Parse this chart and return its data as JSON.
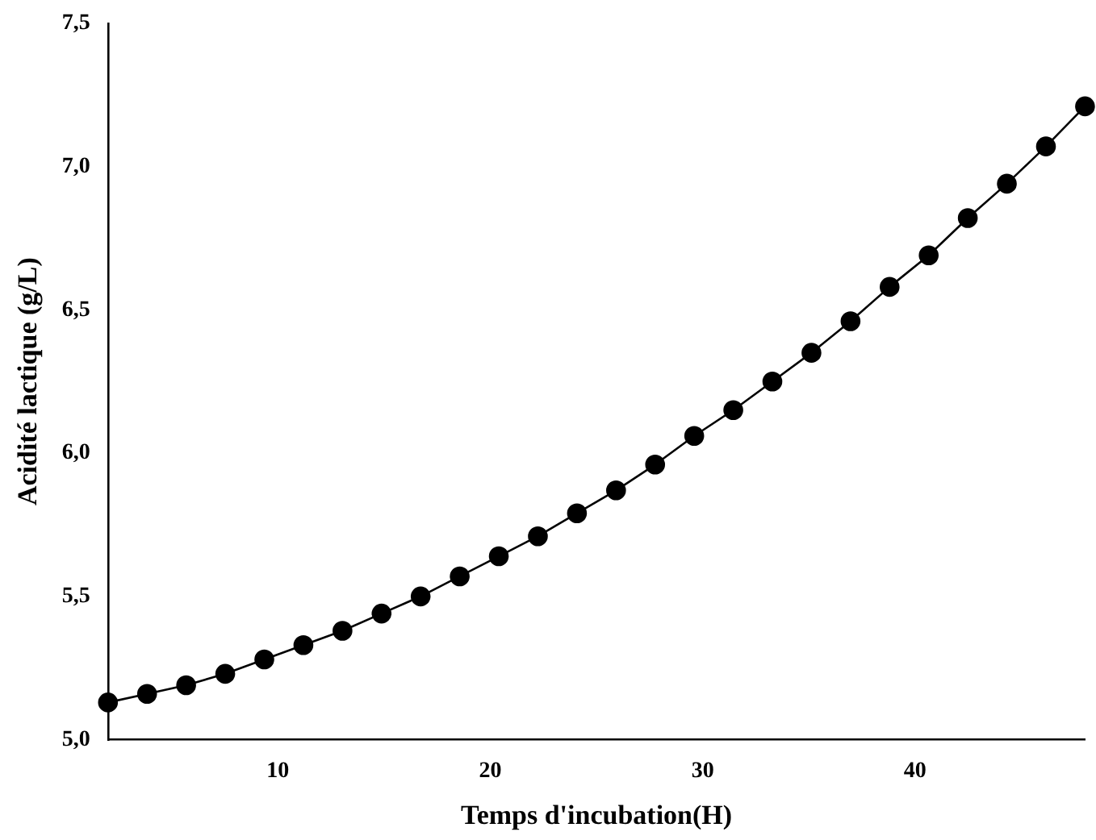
{
  "chart_data": {
    "type": "line",
    "xlabel": "Temps d'incubation(H)",
    "ylabel": "Acidité lactique (g/L)",
    "x": [
      2,
      3.84,
      5.68,
      7.52,
      9.36,
      11.2,
      13.04,
      14.88,
      16.72,
      18.56,
      20.4,
      22.24,
      24.08,
      25.92,
      27.76,
      29.6,
      31.44,
      33.28,
      35.12,
      36.96,
      38.8,
      40.64,
      42.48,
      44.32,
      46.16,
      48
    ],
    "series": [
      {
        "color": "#000000",
        "values": [
          5.13,
          5.16,
          5.19,
          5.23,
          5.28,
          5.33,
          5.38,
          5.44,
          5.5,
          5.57,
          5.64,
          5.71,
          5.79,
          5.87,
          5.96,
          6.06,
          6.15,
          6.25,
          6.35,
          6.46,
          6.58,
          6.69,
          6.82,
          6.94,
          7.07,
          7.21
        ]
      }
    ],
    "xlim": [
      2,
      48
    ],
    "xticks": [
      10,
      20,
      30,
      40
    ],
    "ylim": [
      5,
      7.5
    ],
    "yticks": [
      {
        "value": 5,
        "label": "5,0"
      },
      {
        "value": 5.5,
        "label": "5,5"
      },
      {
        "value": 6,
        "label": "6,0"
      },
      {
        "value": 6.5,
        "label": "6,5"
      },
      {
        "value": 7,
        "label": "7,0"
      },
      {
        "value": 7.5,
        "label": "7,5"
      }
    ],
    "grid": false,
    "legend": false,
    "marker": "circle",
    "line_style": "solid"
  }
}
